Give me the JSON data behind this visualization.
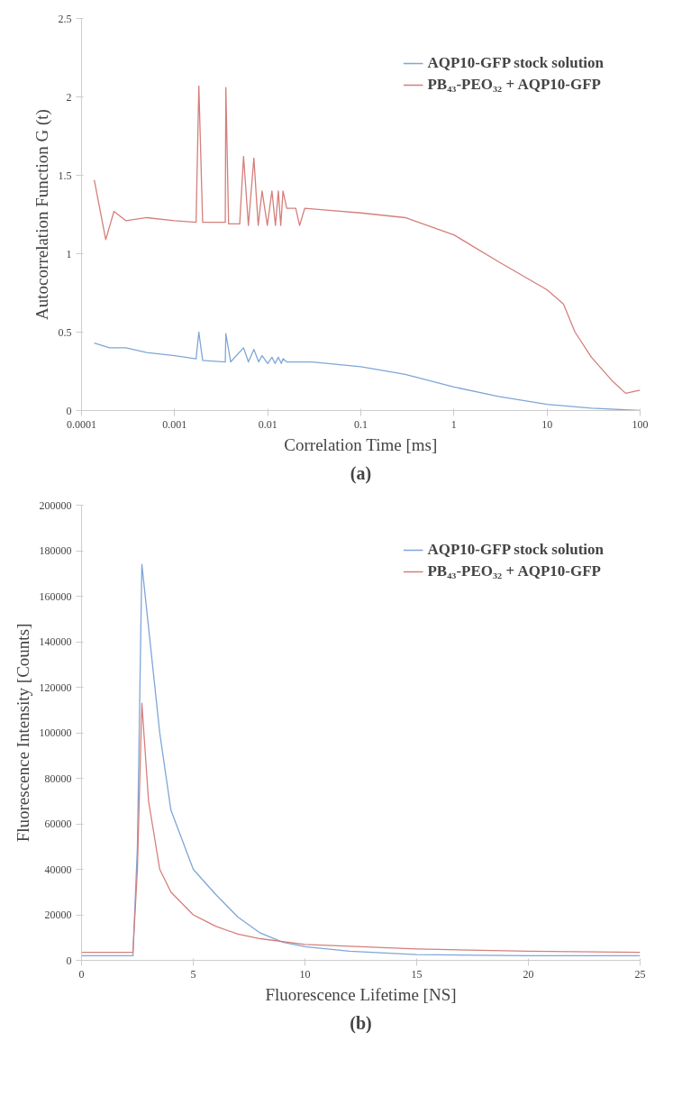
{
  "chart_data": [
    {
      "type": "line",
      "title": "(a)",
      "xlabel": "Correlation Time [ms]",
      "ylabel": "Autocorrelation Function G (t)",
      "log": "x",
      "xlim": [
        0.0001,
        100
      ],
      "ylim": [
        0,
        2.5
      ],
      "xticks": [
        0.0001,
        0.001,
        0.01,
        0.1,
        1,
        10,
        100
      ],
      "yticks": [
        0,
        0.5,
        1,
        1.5,
        2,
        2.5
      ],
      "grid": false,
      "legend": "top right",
      "marker": "none",
      "line_style": "solid",
      "series": [
        {
          "name": "AQP10-GFP stock solution",
          "color": "#7ea6d8",
          "x": [
            0.000137,
            0.0002,
            0.0003,
            0.0005,
            0.001,
            0.0017,
            0.00182,
            0.002,
            0.0035,
            0.00355,
            0.004,
            0.0055,
            0.0062,
            0.0071,
            0.008,
            0.0087,
            0.01,
            0.0111,
            0.012,
            0.013,
            0.014,
            0.0146,
            0.016,
            0.03,
            0.1,
            0.3,
            1,
            3,
            10,
            30,
            100
          ],
          "values": [
            0.43,
            0.4,
            0.4,
            0.37,
            0.35,
            0.33,
            0.5,
            0.32,
            0.31,
            0.49,
            0.31,
            0.4,
            0.31,
            0.39,
            0.31,
            0.35,
            0.3,
            0.34,
            0.3,
            0.34,
            0.3,
            0.33,
            0.31,
            0.31,
            0.28,
            0.23,
            0.15,
            0.09,
            0.04,
            0.015,
            0.0
          ]
        },
        {
          "name": "PB₄₃-PEO₃₂ + AQP10-GFP",
          "color": "#d47f7b",
          "x": [
            0.000137,
            0.000182,
            0.000223,
            0.0003,
            0.0005,
            0.001,
            0.0017,
            0.00182,
            0.002,
            0.0035,
            0.00355,
            0.0038,
            0.005,
            0.0055,
            0.0062,
            0.0071,
            0.0079,
            0.0087,
            0.0099,
            0.0111,
            0.0121,
            0.013,
            0.0138,
            0.0146,
            0.016,
            0.02,
            0.022,
            0.025,
            0.04,
            0.1,
            0.3,
            1,
            3,
            10,
            15,
            20,
            30,
            50,
            70,
            100
          ],
          "values": [
            1.47,
            1.09,
            1.27,
            1.21,
            1.23,
            1.21,
            1.2,
            2.07,
            1.2,
            1.2,
            2.06,
            1.19,
            1.19,
            1.62,
            1.18,
            1.61,
            1.18,
            1.4,
            1.18,
            1.4,
            1.18,
            1.4,
            1.18,
            1.4,
            1.29,
            1.29,
            1.18,
            1.29,
            1.28,
            1.26,
            1.23,
            1.12,
            0.95,
            0.77,
            0.68,
            0.5,
            0.34,
            0.19,
            0.11,
            0.13
          ]
        }
      ]
    },
    {
      "type": "line",
      "title": "(b)",
      "xlabel": "Fluorescence Lifetime [NS]",
      "ylabel": "Fluorescence Intensity [Counts]",
      "xlim": [
        0,
        25
      ],
      "ylim": [
        0,
        200000
      ],
      "xticks": [
        0,
        5,
        10,
        15,
        20,
        25
      ],
      "yticks": [
        0,
        20000,
        40000,
        60000,
        80000,
        100000,
        120000,
        140000,
        160000,
        180000,
        200000
      ],
      "grid": false,
      "legend": "top right",
      "marker": "none",
      "line_style": "solid",
      "series": [
        {
          "name": "AQP10-GFP stock solution",
          "color": "#7ea6d8",
          "x": [
            0,
            2.3,
            2.5,
            2.7,
            3.5,
            4,
            5,
            6,
            7,
            8,
            9,
            10,
            12,
            15,
            20,
            25
          ],
          "values": [
            2000,
            2000,
            50000,
            174000,
            100000,
            66000,
            40000,
            29000,
            19000,
            12000,
            8000,
            6000,
            4000,
            2500,
            2000,
            2000
          ]
        },
        {
          "name": "PB₄₃-PEO₃₂ + AQP10-GFP",
          "color": "#d47f7b",
          "x": [
            0,
            2.3,
            2.5,
            2.7,
            3,
            3.5,
            4,
            5,
            6,
            7,
            8,
            10,
            15,
            20,
            25
          ],
          "values": [
            3500,
            3500,
            40000,
            113000,
            70000,
            40000,
            30000,
            20000,
            15000,
            11500,
            9500,
            7000,
            5000,
            4000,
            3500
          ]
        }
      ]
    }
  ]
}
